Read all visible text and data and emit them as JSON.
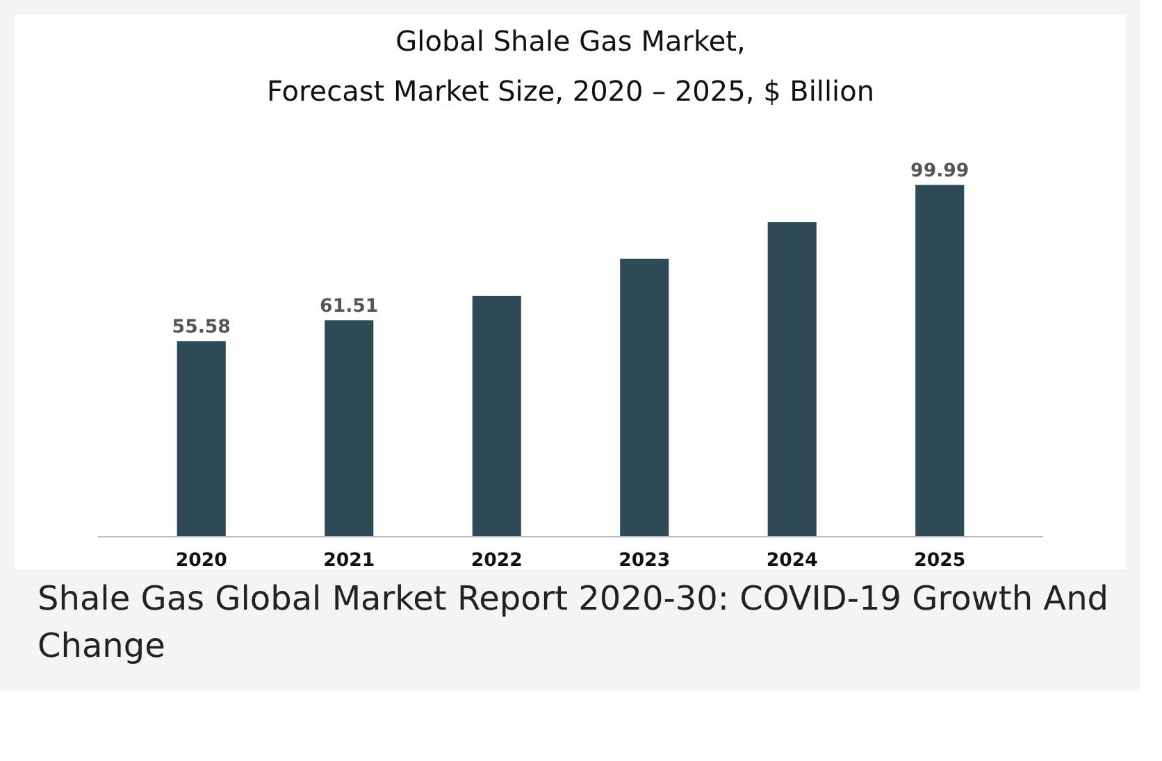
{
  "chart_data": {
    "type": "bar",
    "title": "Global Shale Gas Market,",
    "subtitle": "Forecast Market Size, 2020 – 2025, $ Billion",
    "categories": [
      "2020",
      "2021",
      "2022",
      "2023",
      "2024",
      "2025"
    ],
    "values": [
      55.58,
      61.51,
      68.5,
      79.0,
      89.4,
      99.99
    ],
    "value_labels": [
      "55.58",
      "61.51",
      null,
      null,
      null,
      "99.99"
    ],
    "color": "#2e4a57",
    "grid": false,
    "annotations": [
      "Shale Gas Global Market Report 2020-30: COVID-19 Growth And Change"
    ]
  }
}
